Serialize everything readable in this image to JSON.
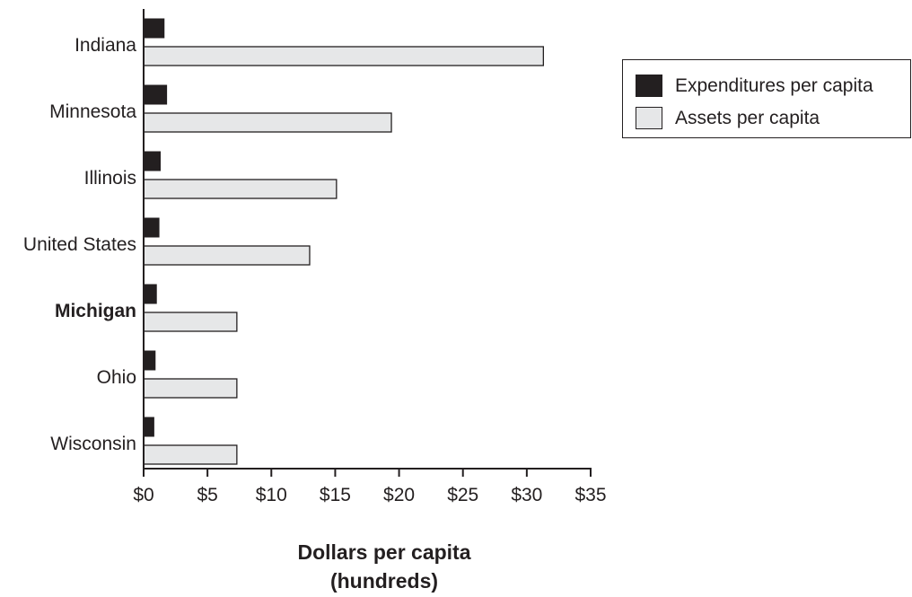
{
  "chart_data": {
    "type": "bar",
    "orientation": "horizontal",
    "categories": [
      "Indiana",
      "Minnesota",
      "Illinois",
      "United States",
      "Michigan",
      "Ohio",
      "Wisconsin"
    ],
    "highlight_category": "Michigan",
    "series": [
      {
        "name": "Expenditures per capita",
        "color": "#231f20",
        "values": [
          1.6,
          1.8,
          1.3,
          1.2,
          1.0,
          0.9,
          0.8
        ]
      },
      {
        "name": "Assets per capita",
        "color": "#e6e7e8",
        "values": [
          31.3,
          19.4,
          15.1,
          13.0,
          7.3,
          7.3,
          7.3
        ]
      }
    ],
    "xticks": [
      "$0",
      "$5",
      "$10",
      "$15",
      "$20",
      "$25",
      "$30",
      "$35"
    ],
    "xlim": [
      0,
      35
    ],
    "xlabel_line1": "Dollars per capita",
    "xlabel_line2": "(hundreds)",
    "grid": false,
    "legend_position": "top-right"
  }
}
